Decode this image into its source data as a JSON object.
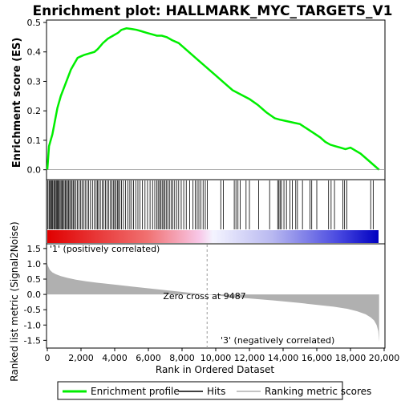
{
  "chart_data": {
    "type": "line",
    "title": "Enrichment plot: HALLMARK_MYC_TARGETS_V1",
    "xlabel": "Rank in Ordered Dataset",
    "xlim": [
      0,
      20000
    ],
    "x_ticks": [
      0,
      2000,
      4000,
      6000,
      8000,
      10000,
      12000,
      14000,
      16000,
      18000,
      20000
    ],
    "x_tick_labels": [
      "0",
      "2,000",
      "4,000",
      "6,000",
      "8,000",
      "10,000",
      "12,000",
      "14,000",
      "16,000",
      "18,000",
      "20,000"
    ],
    "n_genes": 19700,
    "es_panel": {
      "ylabel": "Enrichment score (ES)",
      "ylim": [
        -0.02,
        0.5
      ],
      "y_ticks": [
        0.0,
        0.1,
        0.2,
        0.3,
        0.4,
        0.5
      ],
      "y_tick_labels": [
        "0.0",
        "0.1",
        "0.2",
        "0.3",
        "0.4",
        "0.5"
      ],
      "series": [
        {
          "name": "Enrichment profile",
          "color": "#00ee00",
          "x": [
            0,
            100,
            200,
            300,
            400,
            500,
            600,
            700,
            800,
            1000,
            1200,
            1400,
            1600,
            1800,
            2000,
            2200,
            2500,
            2800,
            3000,
            3300,
            3600,
            3900,
            4200,
            4400,
            4700,
            5000,
            5300,
            5600,
            5900,
            6200,
            6500,
            6800,
            7100,
            7400,
            7800,
            8200,
            8600,
            9000,
            9500,
            10000,
            10500,
            11000,
            11500,
            12000,
            12500,
            13000,
            13500,
            13800,
            14200,
            14600,
            15000,
            15400,
            15800,
            16200,
            16500,
            16800,
            17100,
            17400,
            17700,
            18000,
            18300,
            18600,
            18900,
            19200,
            19500,
            19700
          ],
          "y": [
            0.0,
            0.08,
            0.1,
            0.12,
            0.15,
            0.18,
            0.21,
            0.23,
            0.25,
            0.28,
            0.31,
            0.34,
            0.36,
            0.38,
            0.385,
            0.39,
            0.395,
            0.4,
            0.41,
            0.43,
            0.445,
            0.455,
            0.465,
            0.475,
            0.48,
            0.478,
            0.475,
            0.47,
            0.465,
            0.46,
            0.455,
            0.455,
            0.45,
            0.44,
            0.43,
            0.41,
            0.39,
            0.37,
            0.345,
            0.32,
            0.295,
            0.27,
            0.255,
            0.24,
            0.22,
            0.195,
            0.175,
            0.17,
            0.165,
            0.16,
            0.155,
            0.14,
            0.125,
            0.11,
            0.095,
            0.085,
            0.08,
            0.075,
            0.07,
            0.075,
            0.065,
            0.055,
            0.04,
            0.025,
            0.01,
            0.0
          ]
        }
      ]
    },
    "hits_panel": {
      "hits": [
        30,
        100,
        150,
        200,
        260,
        310,
        380,
        430,
        480,
        540,
        600,
        650,
        700,
        760,
        820,
        880,
        940,
        1000,
        1070,
        1130,
        1200,
        1260,
        1330,
        1400,
        1470,
        1540,
        1610,
        1700,
        1790,
        1880,
        1970,
        2060,
        2150,
        2250,
        2350,
        2450,
        2560,
        2680,
        2800,
        2900,
        2980,
        3050,
        3150,
        3260,
        3350,
        3450,
        3550,
        3650,
        3750,
        3840,
        3920,
        4000,
        4080,
        4160,
        4230,
        4300,
        4400,
        4520,
        4650,
        4780,
        4900,
        5000,
        5120,
        5250,
        5380,
        5500,
        5650,
        5800,
        5950,
        6100,
        6250,
        6380,
        6500,
        6580,
        6660,
        6740,
        6820,
        6900,
        6980,
        7060,
        7150,
        7250,
        7350,
        7450,
        7560,
        7680,
        7800,
        7950,
        8100,
        8250,
        8450,
        8650,
        8780,
        8900,
        9000,
        9120,
        9250,
        9380,
        9500,
        10300,
        10450,
        11100,
        11200,
        11320,
        11450,
        11800,
        12000,
        12550,
        13200,
        13680,
        13750,
        13820,
        13900,
        14050,
        14200,
        14400,
        14550,
        14750,
        14850,
        15150,
        15600,
        15700,
        16000,
        16700,
        16850,
        17050,
        17550,
        17650,
        17780,
        19200,
        19350
      ]
    },
    "metric_panel": {
      "ylabel": "Ranked list metric (Signal2Noise)",
      "ylim": [
        -1.7,
        1.6
      ],
      "y_ticks": [
        -1.5,
        -1.0,
        -0.5,
        0.0,
        0.5,
        1.0,
        1.5
      ],
      "y_tick_labels": [
        "-1.5",
        "-1.0",
        "-0.5",
        "0.0",
        "0.5",
        "1.0",
        "1.5"
      ],
      "x": [
        0,
        50,
        150,
        300,
        500,
        800,
        1200,
        1700,
        2300,
        3000,
        4000,
        5000,
        6000,
        7000,
        8000,
        8800,
        9487,
        10500,
        12000,
        13500,
        15000,
        16000,
        17000,
        17800,
        18400,
        18900,
        19200,
        19400,
        19550,
        19650,
        19700
      ],
      "y": [
        1.0,
        0.92,
        0.8,
        0.72,
        0.66,
        0.6,
        0.54,
        0.48,
        0.43,
        0.38,
        0.32,
        0.26,
        0.2,
        0.14,
        0.08,
        0.03,
        0.0,
        -0.06,
        -0.13,
        -0.2,
        -0.28,
        -0.34,
        -0.4,
        -0.47,
        -0.55,
        -0.65,
        -0.75,
        -0.85,
        -1.0,
        -1.2,
        -1.55
      ],
      "fill_color": "#b0b0b0",
      "zero_cross_label": "Zero cross at 9487",
      "zero_cross_x": 9487,
      "positive_label": "'1' (positively correlated)",
      "positive_color": "#cc0000",
      "negative_label": "'3' (negatively correlated)",
      "negative_color": "#0000cc"
    },
    "legend": {
      "placement": "bottom",
      "entries": [
        {
          "label": "Enrichment profile",
          "color": "#00ee00"
        },
        {
          "label": "Hits",
          "color": "#000000"
        },
        {
          "label": "Ranking metric scores",
          "color": "#b0b0b0"
        }
      ]
    }
  }
}
